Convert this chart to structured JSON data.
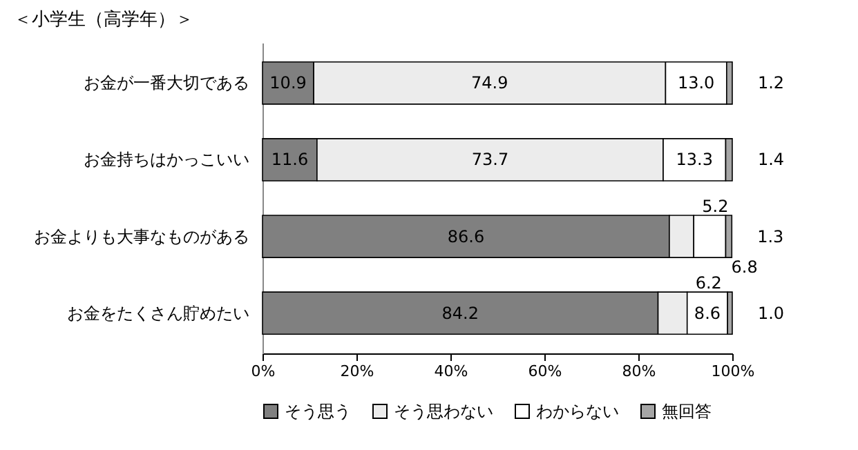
{
  "chart_data": {
    "type": "bar",
    "orientation": "horizontal",
    "stacked": true,
    "title": "＜小学生（高学年）＞",
    "categories": [
      "お金が一番大切である",
      "お金持ちはかっこいい",
      "お金よりも大事なものがある",
      "お金をたくさん貯めたい"
    ],
    "series": [
      {
        "name": "そう思う",
        "color": "#808080",
        "values": [
          10.9,
          11.6,
          86.6,
          84.2
        ],
        "value_labels": [
          "10.9",
          "11.6",
          "86.6",
          "84.2"
        ]
      },
      {
        "name": "そう思わない",
        "color": "#ececec",
        "values": [
          74.9,
          73.7,
          5.2,
          6.2
        ],
        "value_labels": [
          "74.9",
          "73.7",
          "5.2",
          "6.2"
        ]
      },
      {
        "name": "わからない",
        "color": "#ffffff",
        "values": [
          13.0,
          13.3,
          6.8,
          8.6
        ],
        "value_labels": [
          "13.0",
          "13.3",
          "6.8",
          "8.6"
        ]
      },
      {
        "name": "無回答",
        "color": "#a6a6a6",
        "values": [
          1.2,
          1.4,
          1.3,
          1.0
        ],
        "value_labels": [
          "1.2",
          "1.4",
          "1.3",
          "1.0"
        ]
      }
    ],
    "xlim": [
      0,
      100
    ],
    "xticks": [
      {
        "value": 0,
        "label": "0%"
      },
      {
        "value": 20,
        "label": "20%"
      },
      {
        "value": 40,
        "label": "40%"
      },
      {
        "value": 60,
        "label": "60%"
      },
      {
        "value": 80,
        "label": "80%"
      },
      {
        "value": 100,
        "label": "100%"
      }
    ],
    "legend": "bottom",
    "grid": false
  }
}
